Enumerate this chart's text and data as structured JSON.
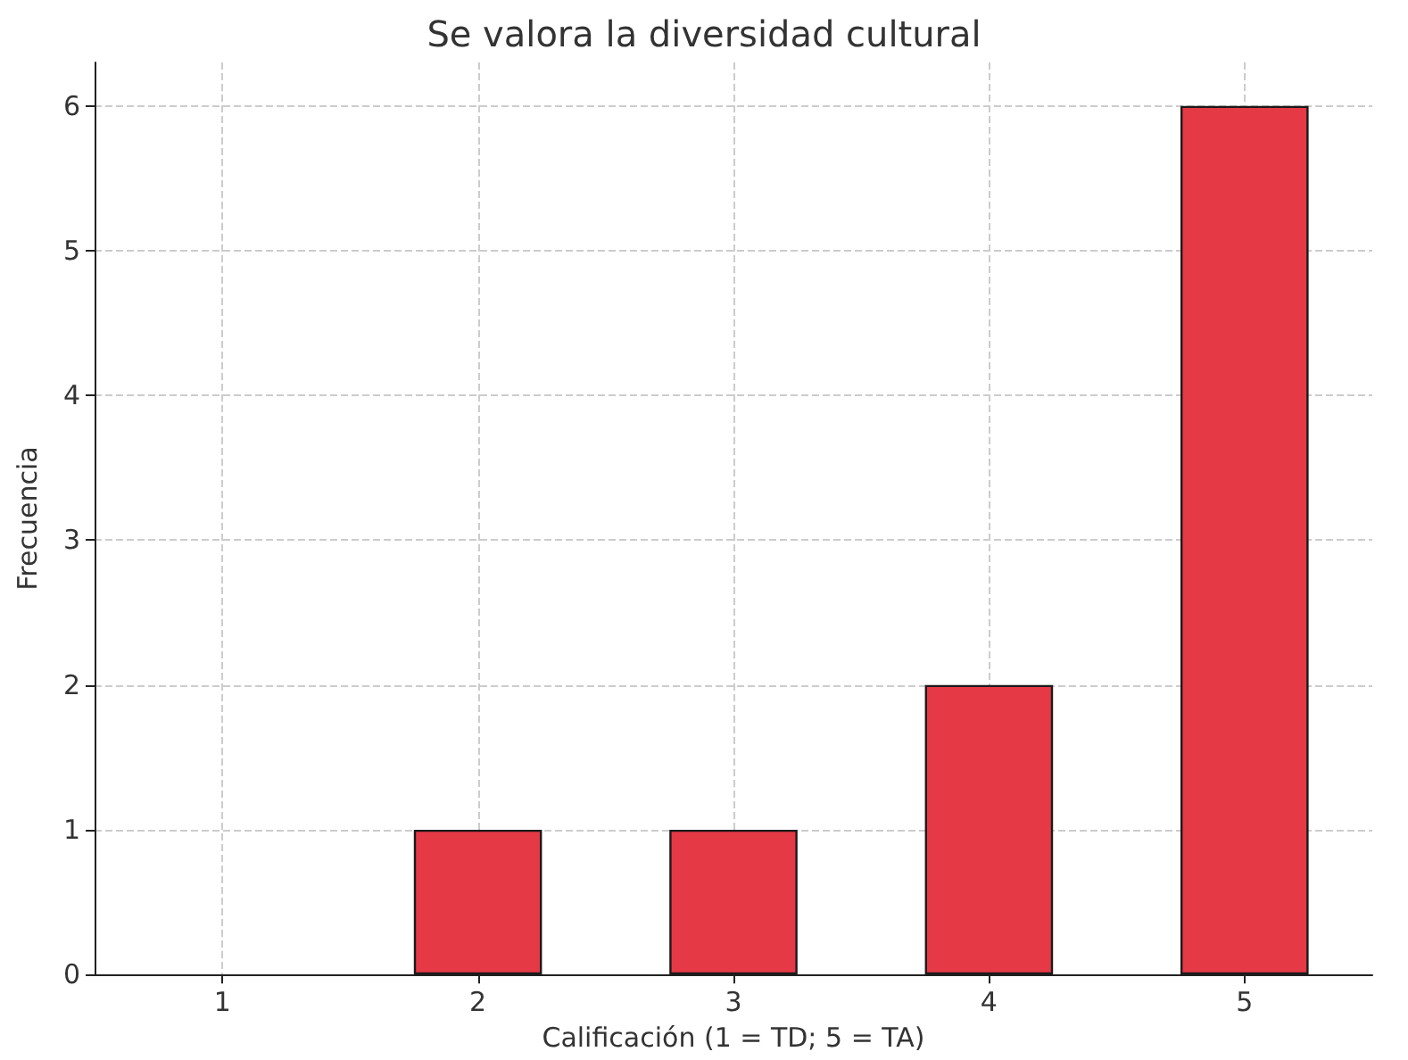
{
  "chart_data": {
    "type": "bar",
    "title": "Se valora la diversidad cultural",
    "xlabel": "Calificación (1 = TD; 5 = TA)",
    "ylabel": "Frecuencia",
    "x": [
      1,
      2,
      3,
      4,
      5
    ],
    "values": [
      0,
      1,
      1,
      2,
      6
    ],
    "color": "#e63946",
    "xlim": [
      0.5,
      5.5
    ],
    "xticks": [
      1,
      2,
      3,
      4,
      5
    ],
    "ylim": [
      0,
      6.3
    ],
    "yticks": [
      0,
      1,
      2,
      3,
      4,
      5,
      6
    ],
    "grid": true
  }
}
